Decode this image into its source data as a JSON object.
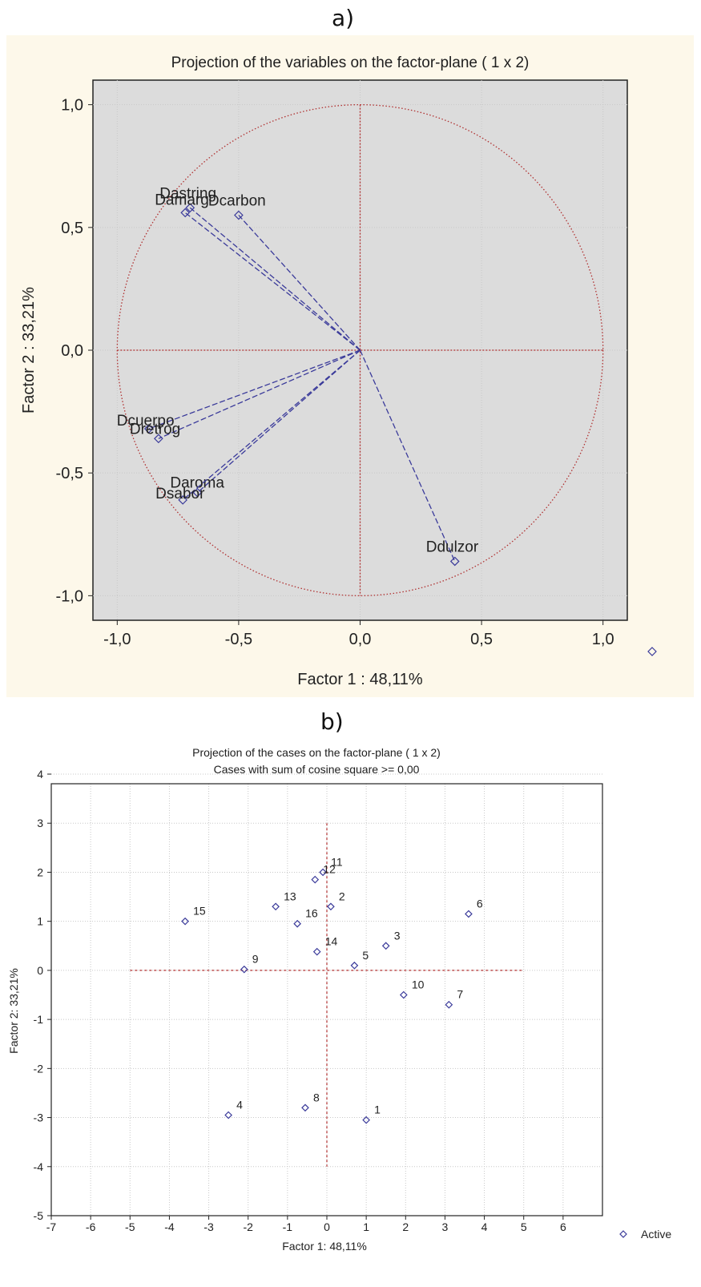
{
  "panel_a": {
    "letter": "a)"
  },
  "panel_b": {
    "letter": "b)"
  },
  "chart_data": [
    {
      "type": "scatter",
      "title": "Projection of the variables on the factor-plane (  1 x   2)",
      "xlabel": "Factor 1 : 48,11%",
      "ylabel": "Factor 2 : 33,21%",
      "xlim": [
        -1.1,
        1.1
      ],
      "ylim": [
        -1.1,
        1.1
      ],
      "xticks": [
        "-1,0",
        "-0,5",
        "0,0",
        "0,5",
        "1,0"
      ],
      "yticks": [
        "1,0",
        "0,5",
        "0,0",
        "-0,5",
        "-1,0"
      ],
      "grid": true,
      "unit_circle": true,
      "points": [
        {
          "label": "Dastring",
          "x": -0.7,
          "y": 0.58
        },
        {
          "label": "Damarg",
          "x": -0.72,
          "y": 0.56
        },
        {
          "label": "Dcarbon",
          "x": -0.5,
          "y": 0.55
        },
        {
          "label": "Dcuerpo",
          "x": -0.87,
          "y": -0.32
        },
        {
          "label": "Dretrog",
          "x": -0.83,
          "y": -0.36
        },
        {
          "label": "Daroma",
          "x": -0.67,
          "y": -0.58
        },
        {
          "label": "Dsabor",
          "x": -0.73,
          "y": -0.61
        },
        {
          "label": "Ddulzor",
          "x": 0.39,
          "y": -0.86
        }
      ],
      "colors": {
        "points": "#3a3a9a",
        "axes": "#b03030",
        "grid": "#c8c8c8",
        "background": "#dcdcdc"
      }
    },
    {
      "type": "scatter",
      "title": "Projection of the cases on the factor-plane (  1 x   2)",
      "subtitle": "Cases with sum of cosine square >=  0,00",
      "xlabel": "Factor 1: 48,11%",
      "ylabel": "Factor 2: 33,21%",
      "xlim": [
        -7,
        7
      ],
      "ylim": [
        -5,
        4
      ],
      "xticks": [
        -7,
        -6,
        -5,
        -4,
        -3,
        -2,
        -1,
        0,
        1,
        2,
        3,
        4,
        5,
        6
      ],
      "yticks": [
        4,
        3,
        2,
        1,
        0,
        -1,
        -2,
        -3,
        -4,
        -5
      ],
      "grid": true,
      "legend": {
        "position": "bottom-right",
        "entries": [
          "Active"
        ]
      },
      "points": [
        {
          "label": "1",
          "x": 1.0,
          "y": -3.05
        },
        {
          "label": "2",
          "x": 0.1,
          "y": 1.3
        },
        {
          "label": "3",
          "x": 1.5,
          "y": 0.5
        },
        {
          "label": "4",
          "x": -2.5,
          "y": -2.95
        },
        {
          "label": "5",
          "x": 0.7,
          "y": 0.1
        },
        {
          "label": "6",
          "x": 3.6,
          "y": 1.15
        },
        {
          "label": "7",
          "x": 3.1,
          "y": -0.7
        },
        {
          "label": "8",
          "x": -0.55,
          "y": -2.8
        },
        {
          "label": "9",
          "x": -2.1,
          "y": 0.02
        },
        {
          "label": "10",
          "x": 1.95,
          "y": -0.5
        },
        {
          "label": "11",
          "x": -0.1,
          "y": 2.0
        },
        {
          "label": "12",
          "x": -0.3,
          "y": 1.85
        },
        {
          "label": "13",
          "x": -1.3,
          "y": 1.3
        },
        {
          "label": "14",
          "x": -0.25,
          "y": 0.38
        },
        {
          "label": "15",
          "x": -3.6,
          "y": 1.0
        },
        {
          "label": "16",
          "x": -0.75,
          "y": 0.95
        }
      ],
      "colors": {
        "points": "#3a3a9a",
        "axes": "#b03030",
        "grid": "#c8c8c8",
        "background": "#ffffff"
      }
    }
  ]
}
